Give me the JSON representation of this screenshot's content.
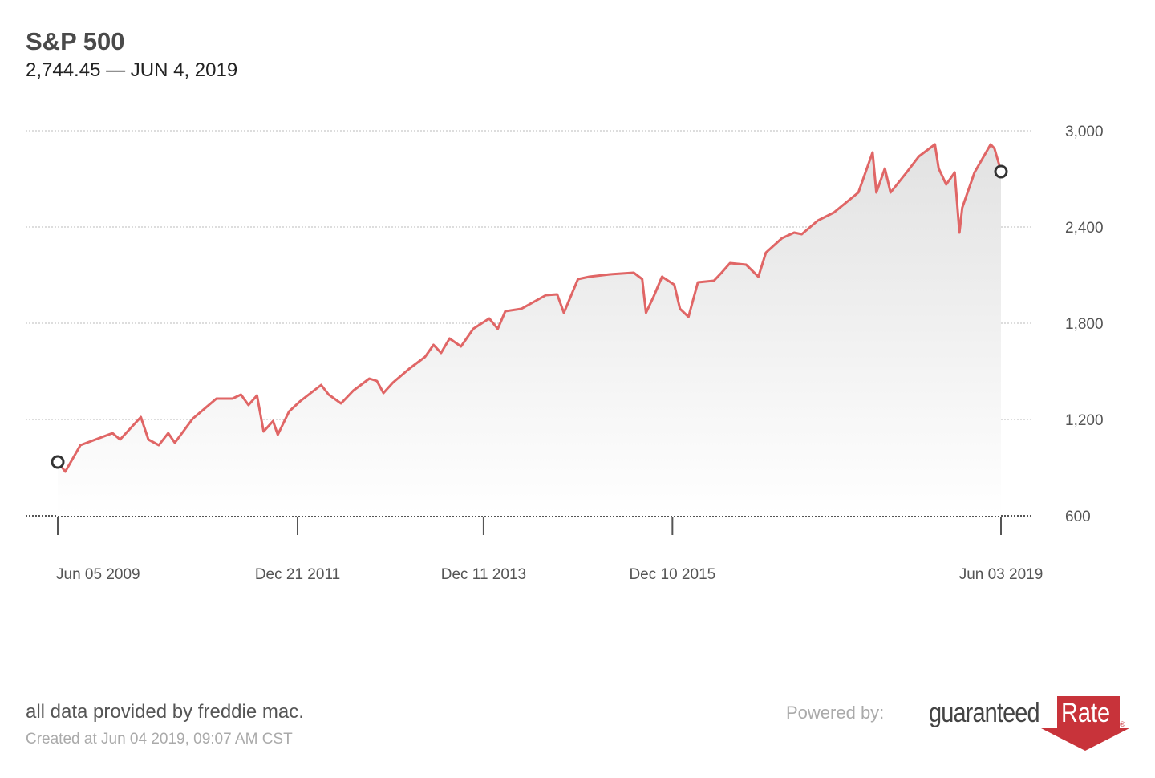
{
  "header": {
    "title": "S&P 500",
    "subtitle": "2,744.45 — JUN 4, 2019"
  },
  "footer": {
    "source": "all data provided by freddie mac.",
    "created": "Created at Jun 04 2019, 09:07 AM CST",
    "powered_by": "Powered by:",
    "logo_text": "guaranteed",
    "logo_rate": "Rate",
    "logo_reg": "®"
  },
  "chart_data": {
    "type": "area",
    "title": "S&P 500",
    "xlabel": "",
    "ylabel": "",
    "ylim": [
      600,
      3000
    ],
    "xlim": [
      2009.43,
      2019.42
    ],
    "grid": true,
    "line_color": "#e06666",
    "yticks": [
      {
        "v": 3000,
        "label": "3,000"
      },
      {
        "v": 2400,
        "label": "2,400"
      },
      {
        "v": 1800,
        "label": "1,800"
      },
      {
        "v": 1200,
        "label": "1,200"
      },
      {
        "v": 600,
        "label": "600"
      }
    ],
    "xticks": [
      {
        "v": 2009.43,
        "label": "Jun 05 2009"
      },
      {
        "v": 2011.97,
        "label": "Dec 21 2011"
      },
      {
        "v": 2013.94,
        "label": "Dec 11 2013"
      },
      {
        "v": 2015.94,
        "label": "Dec 10 2015"
      },
      {
        "v": 2019.42,
        "label": "Jun 03 2019"
      }
    ],
    "x": [
      2009.43,
      2009.51,
      2009.67,
      2010.01,
      2010.09,
      2010.31,
      2010.39,
      2010.5,
      2010.6,
      2010.67,
      2010.86,
      2011.11,
      2011.28,
      2011.37,
      2011.45,
      2011.54,
      2011.61,
      2011.71,
      2011.76,
      2011.88,
      2012.0,
      2012.22,
      2012.3,
      2012.43,
      2012.56,
      2012.73,
      2012.81,
      2012.88,
      2012.98,
      2013.15,
      2013.32,
      2013.41,
      2013.49,
      2013.58,
      2013.7,
      2013.83,
      2014.0,
      2014.09,
      2014.17,
      2014.34,
      2014.6,
      2014.72,
      2014.79,
      2014.94,
      2015.06,
      2015.28,
      2015.53,
      2015.62,
      2015.66,
      2015.74,
      2015.83,
      2015.96,
      2016.02,
      2016.11,
      2016.21,
      2016.38,
      2016.46,
      2016.55,
      2016.72,
      2016.85,
      2016.93,
      2017.1,
      2017.23,
      2017.31,
      2017.48,
      2017.65,
      2017.91,
      2018.06,
      2018.1,
      2018.19,
      2018.25,
      2018.42,
      2018.55,
      2018.72,
      2018.76,
      2018.84,
      2018.93,
      2018.98,
      2019.01,
      2019.14,
      2019.31,
      2019.35,
      2019.4,
      2019.42
    ],
    "values": [
      935,
      875,
      1040,
      1115,
      1075,
      1215,
      1075,
      1040,
      1115,
      1055,
      1205,
      1330,
      1330,
      1355,
      1290,
      1350,
      1125,
      1190,
      1105,
      1250,
      1315,
      1415,
      1355,
      1300,
      1380,
      1455,
      1440,
      1365,
      1430,
      1515,
      1590,
      1665,
      1615,
      1705,
      1655,
      1765,
      1830,
      1765,
      1875,
      1890,
      1975,
      1980,
      1865,
      2075,
      2090,
      2105,
      2115,
      2075,
      1865,
      1965,
      2090,
      2040,
      1890,
      1840,
      2055,
      2065,
      2115,
      2175,
      2165,
      2090,
      2240,
      2330,
      2365,
      2355,
      2440,
      2490,
      2615,
      2865,
      2615,
      2765,
      2615,
      2740,
      2840,
      2915,
      2765,
      2665,
      2740,
      2365,
      2520,
      2740,
      2915,
      2890,
      2790,
      2745
    ],
    "markers": [
      {
        "x": 2009.43,
        "v": 935
      },
      {
        "x": 2019.42,
        "v": 2745
      }
    ]
  }
}
